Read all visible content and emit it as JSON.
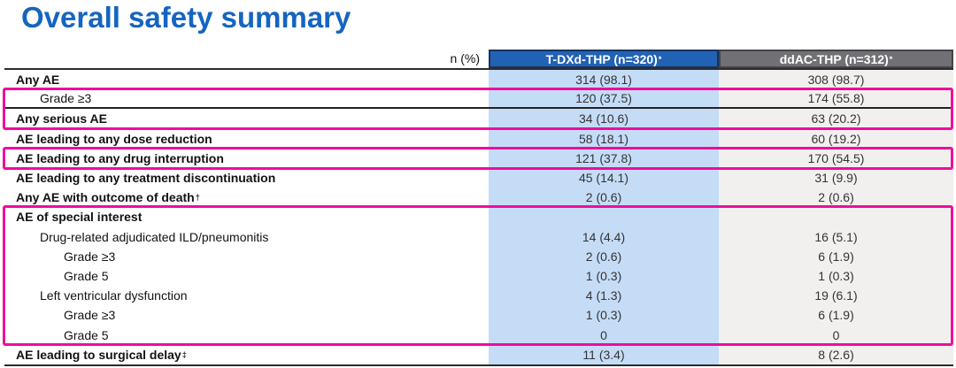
{
  "title": "Overall safety summary",
  "colors": {
    "title_blue": "#1565c0",
    "header_blue": "#2262b4",
    "header_gray": "#717074",
    "column_blue": "#c5dcf7",
    "column_gray": "#f2f0ef",
    "highlight_pink": "#ee0d9e"
  },
  "table": {
    "measure_label": "n (%)",
    "columns": [
      {
        "label": "T-DXd-THP (n=320)",
        "sup": "*"
      },
      {
        "label": "ddAC-THP (n=312)",
        "sup": "*"
      }
    ],
    "rows": [
      {
        "label": "Any AE",
        "sup": "",
        "indent": 0,
        "bold": true,
        "values": [
          "314 (98.1)",
          "308 (98.7)"
        ],
        "box": null,
        "divider_below": false
      },
      {
        "label": "Grade ≥3",
        "sup": "",
        "indent": 1,
        "bold": false,
        "values": [
          "120 (37.5)",
          "174 (55.8)"
        ],
        "box": 1,
        "divider_below": true
      },
      {
        "label": "Any serious AE",
        "sup": "",
        "indent": 0,
        "bold": true,
        "values": [
          "34 (10.6)",
          "63 (20.2)"
        ],
        "box": 1,
        "divider_below": false
      },
      {
        "label": "AE leading to any dose reduction",
        "sup": "",
        "indent": 0,
        "bold": true,
        "values": [
          "58 (18.1)",
          "60 (19.2)"
        ],
        "box": null,
        "divider_below": false
      },
      {
        "label": "AE leading to any drug interruption",
        "sup": "",
        "indent": 0,
        "bold": true,
        "values": [
          "121 (37.8)",
          "170 (54.5)"
        ],
        "box": 2,
        "divider_below": false
      },
      {
        "label": "AE leading to any treatment discontinuation",
        "sup": "",
        "indent": 0,
        "bold": true,
        "values": [
          "45 (14.1)",
          "31 (9.9)"
        ],
        "box": null,
        "divider_below": false
      },
      {
        "label": "Any AE with outcome of death",
        "sup": "†",
        "indent": 0,
        "bold": true,
        "values": [
          "2 (0.6)",
          "2 (0.6)"
        ],
        "box": null,
        "divider_below": false
      },
      {
        "label": "AE of special interest",
        "sup": "",
        "indent": 0,
        "bold": true,
        "values": [
          "",
          ""
        ],
        "box": 3,
        "divider_below": false
      },
      {
        "label": "Drug-related adjudicated ILD/pneumonitis",
        "sup": "",
        "indent": 1,
        "bold": false,
        "values": [
          "14 (4.4)",
          "16 (5.1)"
        ],
        "box": 3,
        "divider_below": false
      },
      {
        "label": "Grade ≥3",
        "sup": "",
        "indent": 2,
        "bold": false,
        "values": [
          "2 (0.6)",
          "6 (1.9)"
        ],
        "box": 3,
        "divider_below": false
      },
      {
        "label": "Grade 5",
        "sup": "",
        "indent": 2,
        "bold": false,
        "values": [
          "1 (0.3)",
          "1 (0.3)"
        ],
        "box": 3,
        "divider_below": false
      },
      {
        "label": "Left ventricular dysfunction",
        "sup": "",
        "indent": 1,
        "bold": false,
        "values": [
          "4 (1.3)",
          "19 (6.1)"
        ],
        "box": 3,
        "divider_below": false
      },
      {
        "label": "Grade ≥3",
        "sup": "",
        "indent": 2,
        "bold": false,
        "values": [
          "1 (0.3)",
          "6 (1.9)"
        ],
        "box": 3,
        "divider_below": false
      },
      {
        "label": "Grade 5",
        "sup": "",
        "indent": 2,
        "bold": false,
        "values": [
          "0",
          "0"
        ],
        "box": 3,
        "divider_below": false
      },
      {
        "label": "AE leading to surgical delay",
        "sup": "‡",
        "indent": 0,
        "bold": true,
        "values": [
          "11 (3.4)",
          "8 (2.6)"
        ],
        "box": null,
        "divider_below": false
      }
    ]
  }
}
